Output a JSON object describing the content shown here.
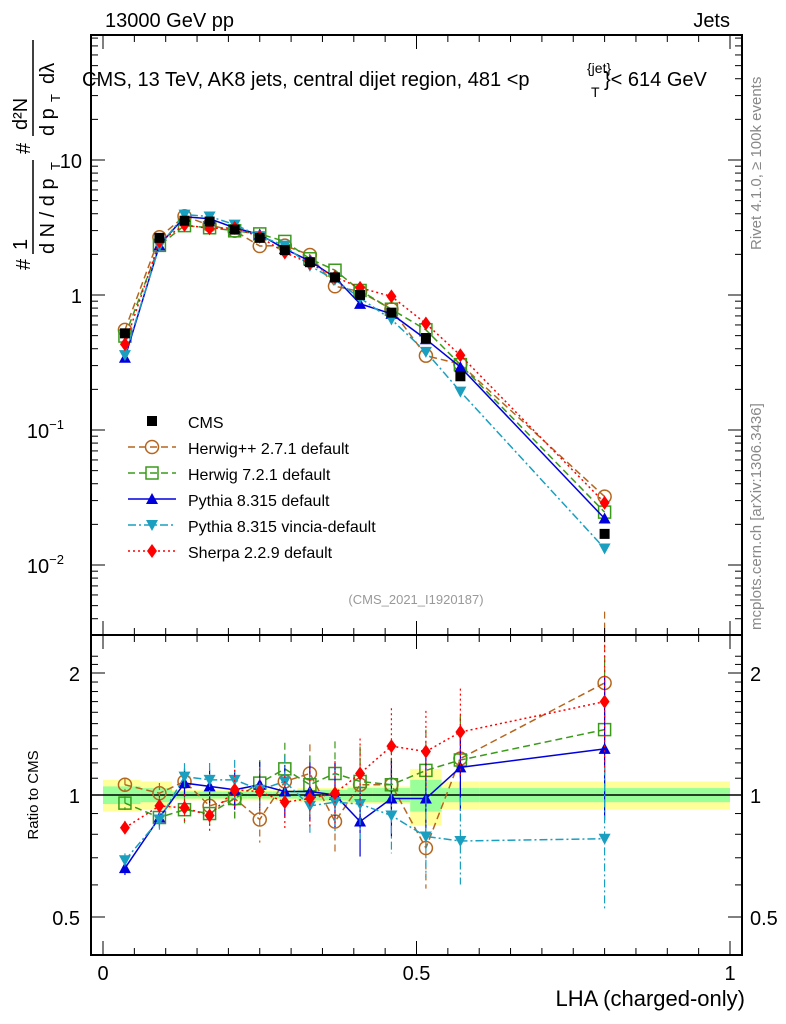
{
  "chart_data": [
    {
      "type": "line",
      "panel": "main",
      "title": "CMS, 13 TeV, AK8 jets, central dijet region, 481 <p_T^{jet}< 614 GeV",
      "header_left": "13000 GeV pp",
      "header_right": "Jets",
      "ylabel": "1/dN/dpT · d²N/dpT dλ",
      "yscale": "log",
      "ylim": [
        0.003,
        80
      ],
      "xlim": [
        -0.02,
        1.02
      ],
      "y_tick_labels": [
        "10^-2",
        "10^-1",
        "1",
        "10"
      ],
      "y_ticks": [
        0.01,
        0.1,
        1,
        10
      ],
      "watermark": "(CMS_2021_I1920187)",
      "side_label_top": "Rivet 4.1.0, ≥ 100k events",
      "side_label_bottom": "mcplots.cern.ch [arXiv:1306.3436]",
      "legend_position": "left-middle",
      "x": [
        0.035,
        0.09,
        0.13,
        0.17,
        0.21,
        0.25,
        0.29,
        0.33,
        0.37,
        0.41,
        0.46,
        0.515,
        0.57,
        0.8
      ],
      "x_bins": [
        [
          0,
          0.06
        ],
        [
          0.06,
          0.11
        ],
        [
          0.11,
          0.15
        ],
        [
          0.15,
          0.19
        ],
        [
          0.19,
          0.23
        ],
        [
          0.23,
          0.27
        ],
        [
          0.27,
          0.31
        ],
        [
          0.31,
          0.35
        ],
        [
          0.35,
          0.39
        ],
        [
          0.39,
          0.43
        ],
        [
          0.43,
          0.49
        ],
        [
          0.49,
          0.54
        ],
        [
          0.54,
          0.6
        ],
        [
          0.6,
          1.0
        ]
      ],
      "series": [
        {
          "name": "CMS",
          "style": "data",
          "color": "#000000",
          "marker": "square-filled",
          "values": [
            0.52,
            2.65,
            3.55,
            3.5,
            3.05,
            2.65,
            2.15,
            1.75,
            1.35,
            1.0,
            0.74,
            0.48,
            0.25,
            0.017
          ]
        },
        {
          "name": "Herwig++ 2.7.1 default",
          "style": "dashed",
          "color": "#b5651d",
          "marker": "circle-open",
          "ratio": [
            1.06,
            1.01,
            1.08,
            0.94,
            0.98,
            0.87,
            1.08,
            1.13,
            0.86,
            1.06,
            1.06,
            0.74,
            1.23,
            1.89
          ]
        },
        {
          "name": "Herwig 7.2.1 default",
          "style": "dashed",
          "color": "#3a9a1a",
          "marker": "square-open",
          "ratio": [
            0.955,
            0.88,
            0.92,
            0.9,
            0.98,
            1.07,
            1.16,
            1.06,
            1.13,
            1.08,
            1.06,
            1.15,
            1.22,
            1.45
          ]
        },
        {
          "name": "Pythia 8.315 default",
          "style": "solid",
          "color": "#0000dd",
          "marker": "triangle-up",
          "ratio": [
            0.66,
            0.88,
            1.07,
            1.05,
            1.03,
            1.06,
            1.02,
            1.02,
            1.0,
            0.86,
            0.98,
            0.98,
            1.17,
            1.3
          ]
        },
        {
          "name": "Pythia 8.315 vincia-default",
          "style": "dashdot",
          "color": "#1a9fc0",
          "marker": "triangle-down",
          "ratio": [
            0.69,
            0.87,
            1.11,
            1.09,
            1.09,
            1.03,
            1.08,
            0.94,
            0.96,
            0.95,
            0.89,
            0.79,
            0.77,
            0.78
          ]
        },
        {
          "name": "Sherpa 2.2.9 default",
          "style": "dotted",
          "color": "#ff0000",
          "marker": "diamond",
          "ratio": [
            0.83,
            0.94,
            0.93,
            0.89,
            1.03,
            1.02,
            0.96,
            0.98,
            1.01,
            1.13,
            1.32,
            1.28,
            1.43,
            1.7
          ]
        }
      ]
    },
    {
      "type": "line",
      "panel": "ratio",
      "ylabel": "Ratio to CMS",
      "xlabel": "LHA (charged-only)",
      "yscale": "log",
      "ylim": [
        0.4,
        2.3
      ],
      "y_ticks": [
        0.5,
        1,
        2
      ],
      "y_tick_labels": [
        "0.5",
        "1",
        "2"
      ],
      "x_ticks": [
        0,
        0.5,
        1
      ],
      "x_tick_labels": [
        "0",
        "0.5",
        "1"
      ],
      "band_stat": [
        0.05,
        0.04,
        0.02,
        0.02,
        0.02,
        0.02,
        0.02,
        0.03,
        0.03,
        0.04,
        0.04,
        0.09,
        0.04,
        0.04
      ],
      "band_total": [
        0.09,
        0.08,
        0.03,
        0.03,
        0.03,
        0.03,
        0.03,
        0.04,
        0.04,
        0.05,
        0.05,
        0.16,
        0.08,
        0.08
      ]
    }
  ]
}
